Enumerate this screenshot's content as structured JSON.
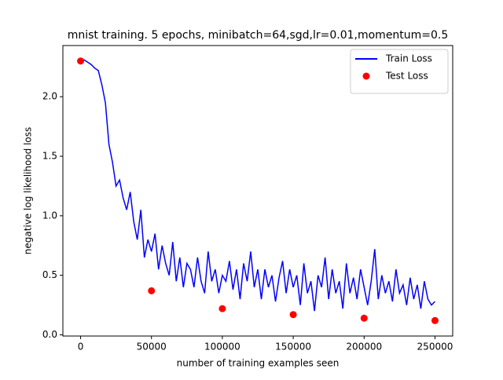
{
  "chart_data": {
    "type": "line",
    "title": "mnist training. 5 epochs, minibatch=64,sgd,lr=0.01,momentum=0.5",
    "x_label": "number of training examples seen",
    "y_label": "negative log likelihood loss",
    "xlim": [
      -12500,
      262500
    ],
    "ylim": [
      -0.01,
      2.43
    ],
    "xticks": [
      0,
      50000,
      100000,
      150000,
      200000,
      250000
    ],
    "yticks": [
      {
        "value": 0,
        "label": "0.0"
      },
      0.5,
      {
        "value": 1,
        "label": "1.0"
      },
      1.5,
      {
        "value": 2,
        "label": "2.0"
      }
    ],
    "legend": "upper right",
    "series": [
      {
        "name": "Train Loss",
        "type": "line",
        "color": "#0000ff",
        "x": [
          0,
          2500,
          5000,
          7500,
          10000,
          12500,
          15000,
          17500,
          20000,
          22500,
          25000,
          27500,
          30000,
          32500,
          35000,
          37500,
          40000,
          42500,
          45000,
          47500,
          50000,
          52500,
          55000,
          57500,
          60000,
          62500,
          65000,
          67500,
          70000,
          72500,
          75000,
          77500,
          80000,
          82500,
          85000,
          87500,
          90000,
          92500,
          95000,
          97500,
          100000,
          102500,
          105000,
          107500,
          110000,
          112500,
          115000,
          117500,
          120000,
          122500,
          125000,
          127500,
          130000,
          132500,
          135000,
          137500,
          140000,
          142500,
          145000,
          147500,
          150000,
          152500,
          155000,
          157500,
          160000,
          162500,
          165000,
          167500,
          170000,
          172500,
          175000,
          177500,
          180000,
          182500,
          185000,
          187500,
          190000,
          192500,
          195000,
          197500,
          200000,
          202500,
          205000,
          207500,
          210000,
          212500,
          215000,
          217500,
          220000,
          222500,
          225000,
          227500,
          230000,
          232500,
          235000,
          237500,
          240000,
          242500,
          245000,
          247500,
          250000
        ],
        "values": [
          2.31,
          2.31,
          2.29,
          2.27,
          2.24,
          2.22,
          2.1,
          1.95,
          1.6,
          1.45,
          1.25,
          1.3,
          1.15,
          1.05,
          1.2,
          0.95,
          0.8,
          1.05,
          0.65,
          0.8,
          0.7,
          0.85,
          0.55,
          0.75,
          0.6,
          0.5,
          0.78,
          0.45,
          0.65,
          0.4,
          0.6,
          0.55,
          0.4,
          0.65,
          0.45,
          0.35,
          0.7,
          0.45,
          0.55,
          0.35,
          0.5,
          0.45,
          0.62,
          0.38,
          0.55,
          0.3,
          0.6,
          0.45,
          0.7,
          0.4,
          0.55,
          0.3,
          0.55,
          0.4,
          0.5,
          0.28,
          0.48,
          0.62,
          0.35,
          0.55,
          0.4,
          0.5,
          0.25,
          0.6,
          0.35,
          0.45,
          0.2,
          0.5,
          0.4,
          0.65,
          0.3,
          0.55,
          0.35,
          0.45,
          0.22,
          0.6,
          0.35,
          0.48,
          0.3,
          0.55,
          0.4,
          0.25,
          0.45,
          0.72,
          0.3,
          0.5,
          0.35,
          0.45,
          0.28,
          0.55,
          0.35,
          0.42,
          0.25,
          0.48,
          0.3,
          0.42,
          0.22,
          0.45,
          0.3,
          0.25,
          0.28
        ]
      },
      {
        "name": "Test Loss",
        "type": "scatter",
        "color": "#ff0000",
        "x": [
          0,
          50000,
          100000,
          150000,
          200000,
          250000
        ],
        "values": [
          2.3,
          0.37,
          0.22,
          0.17,
          0.14,
          0.12
        ]
      }
    ]
  }
}
